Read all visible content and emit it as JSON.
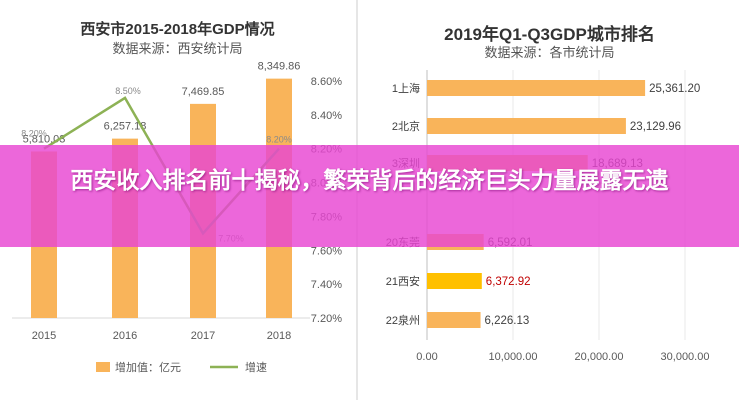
{
  "banner": {
    "headline": "西安收入排名前十揭秘，繁荣背后的经济巨头力量展露无遗"
  },
  "colors": {
    "bar": "#F9B45A",
    "line": "#8DB255",
    "highlight_bar": "#FFC000",
    "highlight_text": "#C00000",
    "banner": "#E846D2"
  },
  "chart_data": [
    {
      "type": "bar",
      "title": "西安市2015-2018年GDP情况",
      "subtitle": "数据来源：西安统计局",
      "categories": [
        "2015",
        "2016",
        "2017",
        "2018"
      ],
      "series": [
        {
          "name": "增加值：亿元",
          "type": "bar",
          "values": [
            5810.03,
            6257.18,
            7469.85,
            8349.86
          ],
          "labels": [
            "5,810.03",
            "6,257.18",
            "7,469.85",
            "8,349.86"
          ]
        },
        {
          "name": "增速",
          "type": "line",
          "values": [
            8.2,
            8.5,
            7.7,
            8.2
          ],
          "labels": [
            "8.20%",
            "8.50%",
            "7.70%",
            "8.20%"
          ]
        }
      ],
      "y2_ticks": [
        "8.60%",
        "8.40%",
        "8.20%",
        "8.00%",
        "7.80%",
        "7.60%",
        "7.40%",
        "7.20%"
      ],
      "y2lim": [
        7.2,
        8.6
      ],
      "ylim": [
        0,
        9000
      ],
      "legend_position": "bottom"
    },
    {
      "type": "bar",
      "orientation": "horizontal",
      "title": "2019年Q1-Q3GDP城市排名",
      "subtitle": "数据来源：各市统计局",
      "categories": [
        "1上海",
        "2北京",
        "3深圳",
        "",
        "20东莞",
        "21西安",
        "22泉州"
      ],
      "values": [
        25361.2,
        23129.96,
        18689.13,
        null,
        6592.01,
        6372.92,
        6226.13
      ],
      "labels": [
        "25,361.20",
        "23,129.96",
        "18,689.13",
        "",
        "6,592.01",
        "6,372.92",
        "6,226.13"
      ],
      "x_ticks": [
        "0.00",
        "10,000.00",
        "20,000.00",
        "30,000.00"
      ],
      "xlim": [
        0,
        30000
      ],
      "highlight": "21西安"
    }
  ]
}
